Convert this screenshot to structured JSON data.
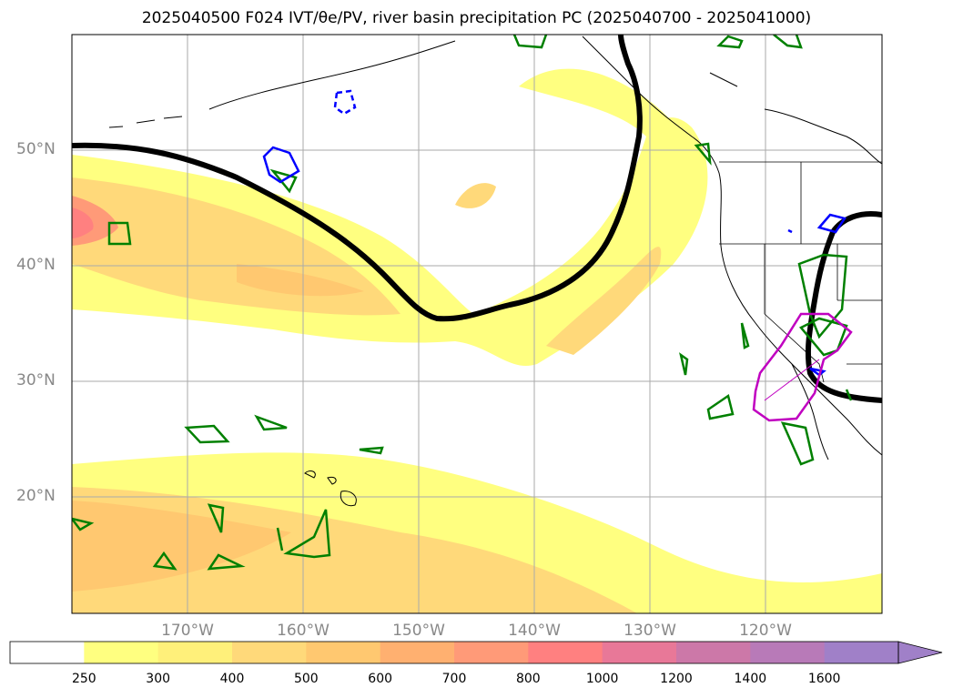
{
  "title": "2025040500 F024 IVT/θe/PV, river basin precipitation PC (2025040700 - 2025041000)",
  "map": {
    "lat_labels": [
      "50°N",
      "40°N",
      "30°N",
      "20°N"
    ],
    "lon_labels": [
      "170°W",
      "160°W",
      "150°W",
      "140°W",
      "130°W",
      "120°W"
    ],
    "features": [
      "ivt-shading",
      "pv-contour",
      "precip-contours",
      "coastlines",
      "state-borders"
    ],
    "colors": {
      "pv_line": "#000000",
      "green_contour": "#008000",
      "blue_contour": "#0000ff",
      "magenta_contour": "#c000c0",
      "coast": "#000000"
    }
  },
  "colorbar": {
    "ticks": [
      "250",
      "300",
      "400",
      "500",
      "600",
      "700",
      "800",
      "1000",
      "1200",
      "1400",
      "1600"
    ],
    "colors": [
      "#ffffff",
      "#ffff80",
      "#fff07a",
      "#ffd97a",
      "#ffc870",
      "#ffb070",
      "#ff9a78",
      "#ff8080",
      "#e87898",
      "#cc78a8",
      "#b87ab8",
      "#a080c8"
    ]
  }
}
